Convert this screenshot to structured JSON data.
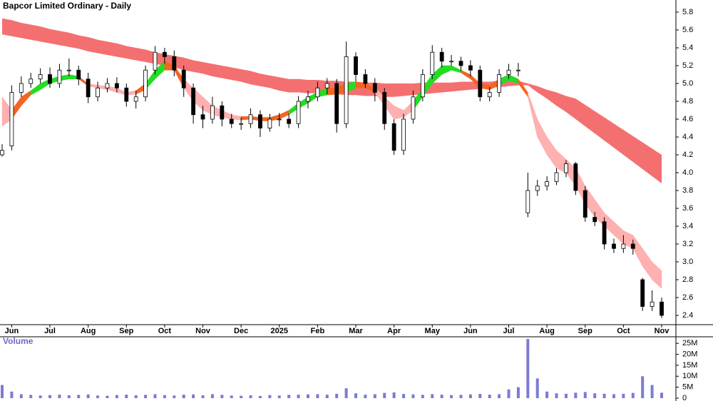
{
  "chart_data": [
    {
      "type": "candlestick",
      "title": "Bapcor Limited Ordinary - Daily",
      "categories": [
        null,
        "Jun",
        null,
        null,
        null,
        "Jul",
        null,
        null,
        null,
        "Aug",
        null,
        null,
        null,
        "Sep",
        null,
        null,
        null,
        "Oct",
        null,
        null,
        null,
        "Nov",
        null,
        null,
        null,
        "Dec",
        null,
        null,
        null,
        "2025",
        null,
        null,
        null,
        "Feb",
        null,
        null,
        null,
        "Mar",
        null,
        null,
        null,
        "Apr",
        null,
        null,
        null,
        "May",
        null,
        null,
        null,
        "Jun",
        null,
        null,
        null,
        "Jul",
        null,
        null,
        null,
        "Aug",
        null,
        null,
        null,
        "Sep",
        null,
        null,
        null,
        "Oct",
        null,
        null,
        null,
        "Nov"
      ],
      "open": [
        4.2,
        4.3,
        4.9,
        5.0,
        5.05,
        5.1,
        5.0,
        5.15,
        5.15,
        5.05,
        4.85,
        4.95,
        5.0,
        4.95,
        4.8,
        4.85,
        5.15,
        5.35,
        5.3,
        5.15,
        4.95,
        4.65,
        4.6,
        4.75,
        4.6,
        4.55,
        4.55,
        4.65,
        4.5,
        4.6,
        4.6,
        4.55,
        4.8,
        4.85,
        4.95,
        5.0,
        4.55,
        5.3,
        5.1,
        5.0,
        4.9,
        4.55,
        4.25,
        4.6,
        4.85,
        5.1,
        5.35,
        5.25,
        5.25,
        5.2,
        5.15,
        4.85,
        4.9,
        5.1,
        5.15,
        3.55,
        3.8,
        3.85,
        3.9,
        4.0,
        4.1,
        3.8,
        3.5,
        3.45,
        3.2,
        3.15,
        3.2,
        2.8,
        2.5,
        2.55
      ],
      "high": [
        4.32,
        4.98,
        5.08,
        5.12,
        5.17,
        5.18,
        5.22,
        5.28,
        5.2,
        5.12,
        5.02,
        5.06,
        5.07,
        5.0,
        4.92,
        5.2,
        5.42,
        5.4,
        5.37,
        5.2,
        5.0,
        4.75,
        4.85,
        4.8,
        4.66,
        4.62,
        4.72,
        4.7,
        4.66,
        4.67,
        4.66,
        4.86,
        4.92,
        5.02,
        5.06,
        5.05,
        5.47,
        5.35,
        5.16,
        5.06,
        4.95,
        4.6,
        4.66,
        4.92,
        5.16,
        5.43,
        5.4,
        5.32,
        5.3,
        5.26,
        5.2,
        4.96,
        5.16,
        5.22,
        5.23,
        4.0,
        3.92,
        3.96,
        4.05,
        4.14,
        4.12,
        3.85,
        3.56,
        3.5,
        3.26,
        3.3,
        3.25,
        2.82,
        2.68,
        2.6
      ],
      "low": [
        4.18,
        4.25,
        4.85,
        4.95,
        5.0,
        4.95,
        4.95,
        5.08,
        4.98,
        4.78,
        4.8,
        4.9,
        4.9,
        4.74,
        4.72,
        4.8,
        5.1,
        5.22,
        5.08,
        4.85,
        4.55,
        4.5,
        4.55,
        4.52,
        4.5,
        4.48,
        4.5,
        4.4,
        4.46,
        4.52,
        4.5,
        4.5,
        4.72,
        4.8,
        4.88,
        4.45,
        4.5,
        5.02,
        4.95,
        4.8,
        4.48,
        4.2,
        4.2,
        4.55,
        4.8,
        5.05,
        5.18,
        5.2,
        5.14,
        5.08,
        4.8,
        4.8,
        4.85,
        5.05,
        5.08,
        3.5,
        3.74,
        3.8,
        3.86,
        3.95,
        3.75,
        3.45,
        3.4,
        3.14,
        3.1,
        3.1,
        3.08,
        2.45,
        2.45,
        2.37
      ],
      "close": [
        4.25,
        4.9,
        5.0,
        5.05,
        5.1,
        5.0,
        5.15,
        5.15,
        5.05,
        4.85,
        4.95,
        5.0,
        4.95,
        4.8,
        4.85,
        5.15,
        5.35,
        5.3,
        5.15,
        4.95,
        4.65,
        4.6,
        4.75,
        4.6,
        4.55,
        4.55,
        4.65,
        4.5,
        4.6,
        4.6,
        4.55,
        4.8,
        4.85,
        4.95,
        5.0,
        4.55,
        5.3,
        5.1,
        5.0,
        4.9,
        4.55,
        4.25,
        4.6,
        4.85,
        5.1,
        5.35,
        5.25,
        5.25,
        5.2,
        5.15,
        4.85,
        4.9,
        5.1,
        5.15,
        5.15,
        3.8,
        3.85,
        3.9,
        4.0,
        4.1,
        3.8,
        3.5,
        3.45,
        3.2,
        3.15,
        3.2,
        3.15,
        2.5,
        2.55,
        2.4
      ],
      "long_band": {
        "color": "#f47070",
        "upper": [
          5.73,
          5.71,
          5.68,
          5.66,
          5.64,
          5.61,
          5.59,
          5.57,
          5.54,
          5.52,
          5.49,
          5.47,
          5.45,
          5.42,
          5.4,
          5.38,
          5.35,
          5.33,
          5.31,
          5.29,
          5.26,
          5.24,
          5.22,
          5.2,
          5.18,
          5.16,
          5.14,
          5.11,
          5.09,
          5.07,
          5.05,
          5.05,
          5.04,
          5.04,
          5.03,
          5.03,
          5.02,
          5.02,
          5.01,
          5.01,
          5.0,
          5.0,
          5.0,
          5.0,
          5.01,
          5.01,
          5.01,
          5.01,
          5.02,
          5.02,
          5.02,
          5.02,
          5.03,
          5.03,
          5.03,
          5.0,
          4.97,
          4.93,
          4.9,
          4.86,
          4.83,
          4.76,
          4.69,
          4.62,
          4.55,
          4.48,
          4.41,
          4.34,
          4.27,
          4.2
        ],
        "lower": [
          5.55,
          5.53,
          5.51,
          5.49,
          5.47,
          5.45,
          5.43,
          5.41,
          5.39,
          5.36,
          5.34,
          5.32,
          5.3,
          5.28,
          5.26,
          5.24,
          5.22,
          5.2,
          5.18,
          5.15,
          5.13,
          5.11,
          5.08,
          5.06,
          5.04,
          5.02,
          4.99,
          4.97,
          4.95,
          4.92,
          4.9,
          4.9,
          4.89,
          4.89,
          4.88,
          4.88,
          4.87,
          4.87,
          4.86,
          4.86,
          4.85,
          4.85,
          4.86,
          4.87,
          4.88,
          4.89,
          4.9,
          4.91,
          4.92,
          4.93,
          4.94,
          4.95,
          4.96,
          4.97,
          4.98,
          4.98,
          4.9,
          4.83,
          4.75,
          4.68,
          4.6,
          4.52,
          4.44,
          4.36,
          4.28,
          4.2,
          4.12,
          4.04,
          3.96,
          3.88
        ]
      },
      "short_band": {
        "upper": [
          4.85,
          4.7,
          4.85,
          4.92,
          5.0,
          5.05,
          5.08,
          5.1,
          5.08,
          5.0,
          4.98,
          4.97,
          4.95,
          4.9,
          4.92,
          5.0,
          5.15,
          5.25,
          5.2,
          5.05,
          4.95,
          4.85,
          4.75,
          4.7,
          4.65,
          4.63,
          4.63,
          4.62,
          4.62,
          4.65,
          4.7,
          4.78,
          4.85,
          4.9,
          4.95,
          4.95,
          5.0,
          5.02,
          5.0,
          4.95,
          4.85,
          4.75,
          4.7,
          4.8,
          4.95,
          5.1,
          5.2,
          5.2,
          5.15,
          5.1,
          5.0,
          4.98,
          5.05,
          5.1,
          5.05,
          4.9,
          4.6,
          4.4,
          4.25,
          4.15,
          4.05,
          3.85,
          3.7,
          3.55,
          3.45,
          3.35,
          3.3,
          3.15,
          3.0,
          2.9
        ],
        "lower": [
          4.52,
          4.6,
          4.75,
          4.87,
          4.93,
          5.0,
          5.03,
          5.05,
          5.05,
          4.97,
          4.95,
          4.93,
          4.9,
          4.87,
          4.88,
          4.93,
          5.05,
          5.15,
          5.15,
          4.95,
          4.8,
          4.7,
          4.65,
          4.62,
          4.6,
          4.59,
          4.6,
          4.58,
          4.58,
          4.6,
          4.65,
          4.72,
          4.78,
          4.85,
          4.87,
          4.88,
          4.9,
          4.95,
          4.95,
          4.9,
          4.75,
          4.6,
          4.62,
          4.7,
          4.85,
          5.0,
          5.1,
          5.15,
          5.12,
          5.05,
          4.95,
          4.93,
          4.98,
          5.03,
          5.0,
          4.85,
          4.4,
          4.2,
          4.05,
          4.0,
          3.85,
          3.65,
          3.5,
          3.4,
          3.3,
          3.2,
          3.15,
          2.95,
          2.8,
          2.7
        ],
        "colors": [
          "#ffb0b0",
          "#f26522",
          "#f26522",
          "#22dd22",
          "#22dd22",
          "#22dd22",
          "#22dd22",
          "#22dd22",
          "#f26522",
          "#ffb0b0",
          "#ffb0b0",
          "#ffb0b0",
          "#ffb0b0",
          "#ffb0b0",
          "#f26522",
          "#22dd22",
          "#22dd22",
          "#f26522",
          "#f26522",
          "#ffb0b0",
          "#ffb0b0",
          "#ffb0b0",
          "#ffb0b0",
          "#ffb0b0",
          "#ffb0b0",
          "#f26522",
          "#f26522",
          "#f26522",
          "#f26522",
          "#f26522",
          "#22dd22",
          "#22dd22",
          "#22dd22",
          "#22dd22",
          "#f26522",
          "#f26522",
          "#22dd22",
          "#f26522",
          "#f26522",
          "#ffb0b0",
          "#ffb0b0",
          "#ffb0b0",
          "#ffb0b0",
          "#22dd22",
          "#22dd22",
          "#22dd22",
          "#22dd22",
          "#22dd22",
          "#f26522",
          "#f26522",
          "#f26522",
          "#f26522",
          "#22dd22",
          "#22dd22",
          "#f26522",
          "#ffb0b0",
          "#ffb0b0",
          "#ffb0b0",
          "#ffb0b0",
          "#ffb0b0",
          "#ffb0b0",
          "#ffb0b0",
          "#ffb0b0",
          "#ffb0b0",
          "#ffb0b0",
          "#ffb0b0",
          "#ffb0b0",
          "#ffb0b0",
          "#ffb0b0",
          "#ffb0b0"
        ]
      },
      "ylim": [
        2.3,
        5.9
      ],
      "yticks": [
        2.4,
        2.6,
        2.8,
        {
          "value": 3,
          "label": "3.0"
        },
        3.2,
        3.4,
        3.6,
        3.8,
        {
          "value": 4,
          "label": "4.0"
        },
        4.2,
        4.4,
        4.6,
        4.8,
        {
          "value": 5,
          "label": "5.0"
        },
        5.2,
        5.4,
        5.6,
        5.8
      ]
    },
    {
      "type": "bar",
      "title": "Volume",
      "color": "#7b7bd6",
      "values": [
        6000000,
        3000000,
        1800000,
        1500000,
        1200000,
        1400000,
        1600000,
        1300000,
        1500000,
        1700000,
        1200000,
        1100000,
        1400000,
        1600000,
        1300000,
        1500000,
        1800000,
        1400000,
        1200000,
        1600000,
        1700000,
        1300000,
        1800000,
        1500000,
        1200000,
        1100000,
        1300000,
        1000000,
        1400000,
        1200000,
        1500000,
        1600000,
        1700000,
        1800000,
        1600000,
        2000000,
        4500000,
        2200000,
        1600000,
        1800000,
        2400000,
        2600000,
        1900000,
        1700000,
        1500000,
        1800000,
        1600000,
        1400000,
        1500000,
        1700000,
        1900000,
        1600000,
        1800000,
        4000000,
        5000000,
        27000000,
        9000000,
        3000000,
        2200000,
        2000000,
        2500000,
        2800000,
        2200000,
        2000000,
        1800000,
        2000000,
        2400000,
        10000000,
        6000000,
        2500000
      ],
      "ylim": [
        0,
        28000000
      ],
      "yticks": [
        0,
        {
          "value": 5000000,
          "label": "5M"
        },
        {
          "value": 10000000,
          "label": "10M"
        },
        {
          "value": 15000000,
          "label": "15M"
        },
        {
          "value": 20000000,
          "label": "20M"
        },
        {
          "value": 25000000,
          "label": "25M"
        }
      ]
    }
  ]
}
